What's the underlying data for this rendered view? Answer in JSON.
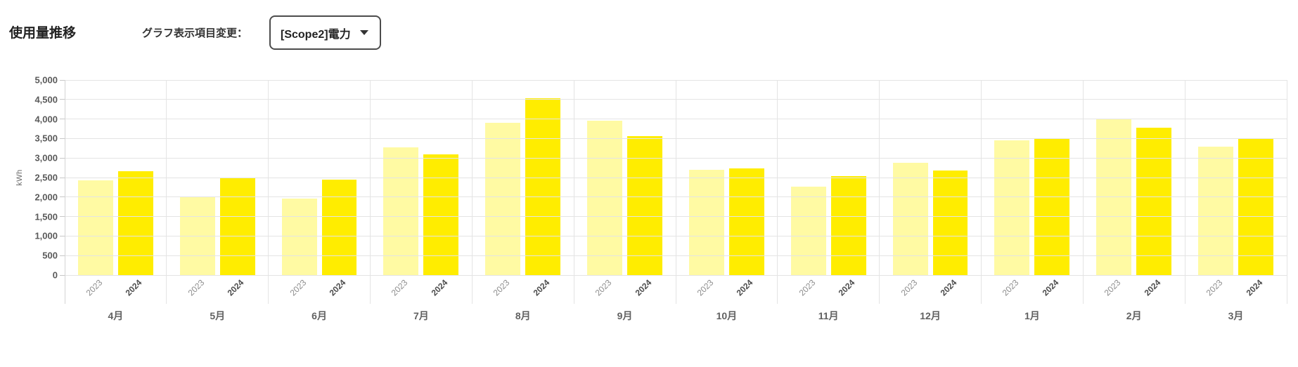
{
  "page": {
    "title": "使用量推移"
  },
  "controls": {
    "label": "グラフ表示項目変更：",
    "dropdown_value": "[Scope2]電力"
  },
  "chart_data": {
    "type": "bar",
    "title": "使用量推移",
    "categories": [
      "4月",
      "5月",
      "6月",
      "7月",
      "8月",
      "9月",
      "10月",
      "11月",
      "12月",
      "1月",
      "2月",
      "3月"
    ],
    "series": [
      {
        "name": "2023",
        "color": "#FFFAA3",
        "values": [
          2430,
          2000,
          1960,
          3280,
          3900,
          3950,
          2690,
          2260,
          2870,
          3450,
          4000,
          3300
        ]
      },
      {
        "name": "2024",
        "color": "#FFED00",
        "values": [
          2660,
          2500,
          2440,
          3100,
          4530,
          3560,
          2740,
          2530,
          2680,
          3500,
          3780,
          3510
        ]
      }
    ],
    "xlabel": "",
    "ylabel": "kWh",
    "ylim": [
      0,
      5000
    ],
    "ytick_step": 500,
    "grid": true,
    "legend_position": "none"
  }
}
